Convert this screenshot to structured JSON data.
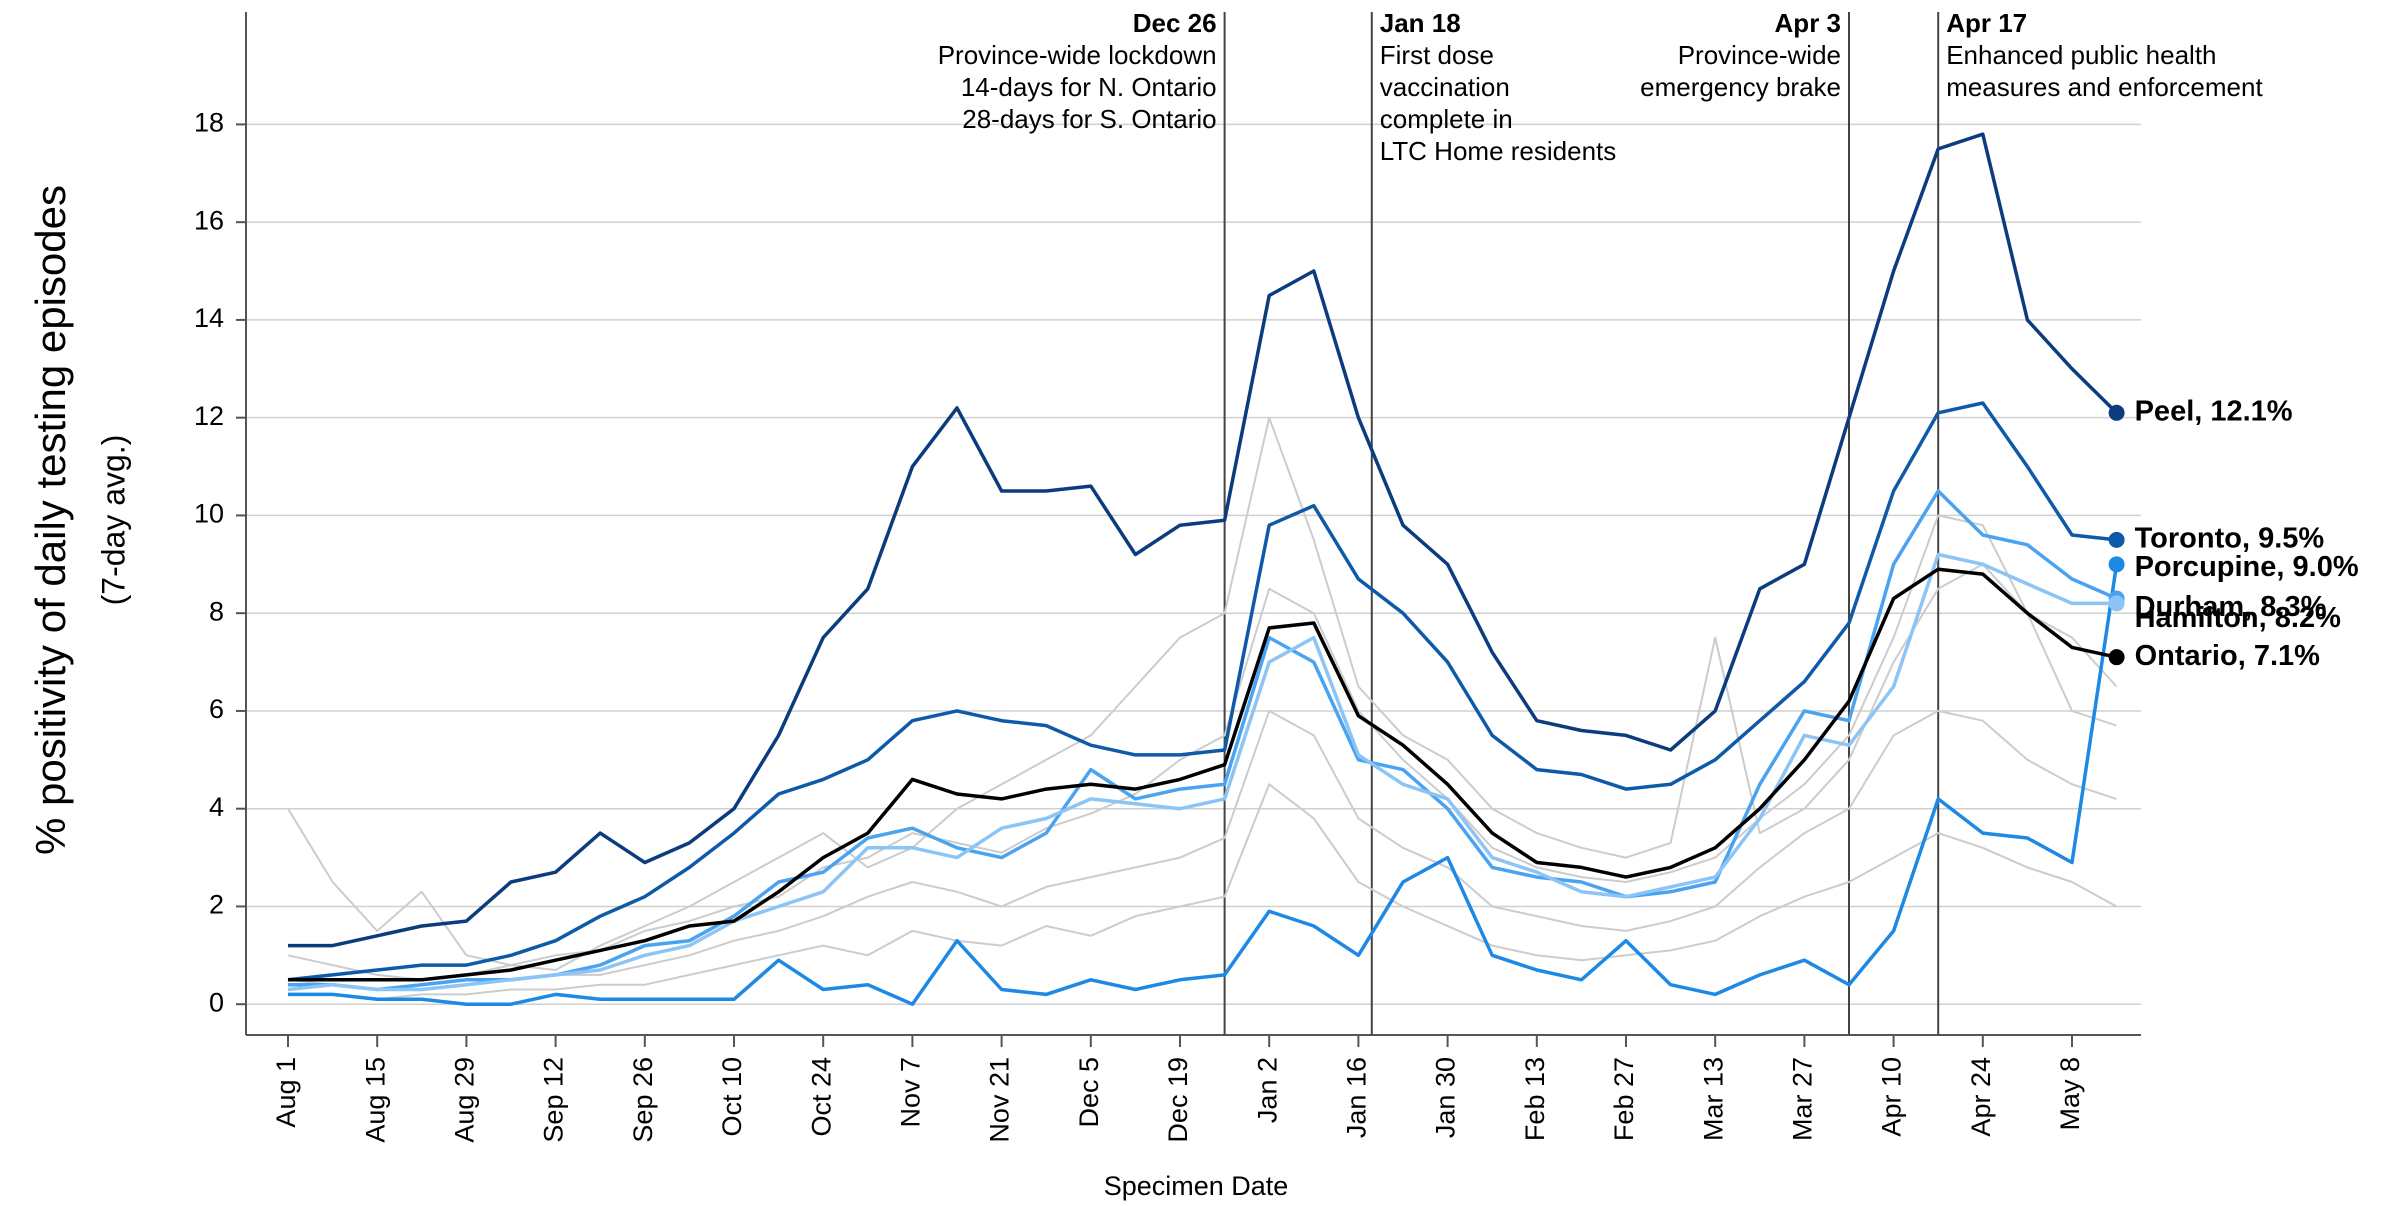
{
  "chart_data": {
    "type": "line",
    "y_label": "% positivity of daily testing episodes",
    "y_sublabel": "(7-day avg.)",
    "x_label": "Specimen Date",
    "categories": [
      "Aug 1",
      null,
      "Aug 15",
      null,
      "Aug 29",
      null,
      "Sep 12",
      null,
      "Sep 26",
      null,
      "Oct 10",
      null,
      "Oct 24",
      null,
      "Nov 7",
      null,
      "Nov 21",
      null,
      "Dec 5",
      null,
      "Dec 19",
      null,
      "Jan 2",
      null,
      "Jan 16",
      null,
      "Jan 30",
      null,
      "Feb 13",
      null,
      "Feb 27",
      null,
      "Mar 13",
      null,
      "Mar 27",
      null,
      "Apr 10",
      null,
      "Apr 24",
      null,
      "May 8",
      null
    ],
    "ylim": [
      -0.63,
      20.3
    ],
    "yticks": [
      0,
      2,
      4,
      6,
      8,
      10,
      12,
      14,
      16,
      18
    ],
    "grid": true,
    "annotations": [
      {
        "date": "Dec 26",
        "lines": [
          "Province-wide lockdown",
          "14-days for N. Ontario",
          "28-days for S. Ontario"
        ]
      },
      {
        "date": "Jan 18",
        "lines": [
          "First dose",
          "vaccination",
          "complete in",
          "LTC Home residents"
        ]
      },
      {
        "date": "Apr 3",
        "lines": [
          "Province-wide",
          "emergency brake"
        ]
      },
      {
        "date": "Apr 17",
        "lines": [
          "Enhanced public health",
          "measures and enforcement"
        ]
      }
    ],
    "background_series": [
      {
        "color": "#cccccc",
        "values": [
          4.0,
          2.5,
          1.5,
          2.3,
          1.0,
          0.8,
          0.7,
          1.2,
          1.6,
          2.0,
          2.5,
          3.0,
          3.5,
          2.8,
          3.2,
          4.0,
          4.5,
          5.0,
          5.5,
          6.5,
          7.5,
          8.0,
          12.0,
          9.5,
          6.5,
          5.5,
          5.0,
          4.0,
          3.5,
          3.2,
          3.0,
          3.3,
          7.5,
          3.5,
          4.0,
          5.0,
          7.0,
          8.5,
          9.0,
          8.0,
          7.5,
          6.5
        ]
      },
      {
        "color": "#cccccc",
        "values": [
          0.5,
          0.4,
          0.3,
          0.3,
          0.4,
          0.5,
          0.6,
          0.6,
          0.8,
          1.0,
          1.3,
          1.5,
          1.8,
          2.2,
          2.5,
          2.3,
          2.0,
          2.4,
          2.6,
          2.8,
          3.0,
          3.4,
          6.0,
          5.5,
          3.8,
          3.2,
          2.8,
          2.0,
          1.8,
          1.6,
          1.5,
          1.7,
          2.0,
          2.8,
          3.5,
          4.0,
          5.5,
          6.0,
          5.8,
          5.0,
          4.5,
          4.2
        ]
      },
      {
        "color": "#cccccc",
        "values": [
          0.2,
          0.2,
          0.1,
          0.2,
          0.2,
          0.3,
          0.3,
          0.4,
          0.4,
          0.6,
          0.8,
          1.0,
          1.2,
          1.0,
          1.5,
          1.3,
          1.2,
          1.6,
          1.4,
          1.8,
          2.0,
          2.2,
          4.5,
          3.8,
          2.5,
          2.0,
          1.6,
          1.2,
          1.0,
          0.9,
          1.0,
          1.1,
          1.3,
          1.8,
          2.2,
          2.5,
          3.0,
          3.5,
          3.2,
          2.8,
          2.5,
          2.0
        ]
      },
      {
        "color": "#cccccc",
        "values": [
          1.0,
          0.8,
          0.6,
          0.5,
          0.6,
          0.8,
          1.0,
          1.1,
          1.5,
          1.7,
          2.0,
          2.2,
          2.8,
          3.0,
          3.5,
          3.3,
          3.1,
          3.6,
          3.9,
          4.3,
          5.0,
          5.5,
          8.5,
          8.0,
          6.0,
          5.0,
          4.2,
          3.2,
          2.8,
          2.6,
          2.5,
          2.7,
          3.0,
          3.8,
          4.5,
          5.5,
          7.5,
          10.0,
          9.8,
          8.0,
          6.0,
          5.7
        ]
      }
    ],
    "series": [
      {
        "name": "Peel, 12.1%",
        "color": "#0b3c7d",
        "values": [
          1.2,
          1.2,
          1.4,
          1.6,
          1.7,
          2.5,
          2.7,
          3.5,
          2.9,
          3.3,
          4.0,
          5.5,
          7.5,
          8.5,
          11.0,
          12.2,
          10.5,
          10.5,
          10.6,
          9.2,
          9.8,
          9.9,
          14.5,
          15.0,
          12.0,
          9.8,
          9.0,
          7.2,
          5.8,
          5.6,
          5.5,
          5.2,
          6.0,
          8.5,
          9.0,
          12.0,
          15.0,
          17.5,
          17.8,
          14.0,
          13.0,
          12.1
        ]
      },
      {
        "name": "Toronto, 9.5%",
        "color": "#0f5aa8",
        "values": [
          0.5,
          0.6,
          0.7,
          0.8,
          0.8,
          1.0,
          1.3,
          1.8,
          2.2,
          2.8,
          3.5,
          4.3,
          4.6,
          5.0,
          5.8,
          6.0,
          5.8,
          5.7,
          5.3,
          5.1,
          5.1,
          5.2,
          9.8,
          10.2,
          8.7,
          8.0,
          7.0,
          5.5,
          4.8,
          4.7,
          4.4,
          4.5,
          5.0,
          5.8,
          6.6,
          7.8,
          10.5,
          12.1,
          12.3,
          11.0,
          9.6,
          9.5
        ]
      },
      {
        "name": "Porcupine, 9.0%",
        "color": "#1e88e5",
        "values": [
          0.2,
          0.2,
          0.1,
          0.1,
          0.0,
          0.0,
          0.2,
          0.1,
          0.1,
          0.1,
          0.1,
          0.9,
          0.3,
          0.4,
          0.0,
          1.3,
          0.3,
          0.2,
          0.5,
          0.3,
          0.5,
          0.6,
          1.9,
          1.6,
          1.0,
          2.5,
          3.0,
          1.0,
          0.7,
          0.5,
          1.3,
          0.4,
          0.2,
          0.6,
          0.9,
          0.4,
          1.5,
          4.2,
          3.5,
          3.4,
          2.9,
          9.0
        ]
      },
      {
        "name": "Durham, 8.3%",
        "color": "#4aa3f0",
        "values": [
          0.4,
          0.4,
          0.3,
          0.4,
          0.5,
          0.5,
          0.6,
          0.8,
          1.2,
          1.3,
          1.8,
          2.5,
          2.7,
          3.4,
          3.6,
          3.2,
          3.0,
          3.5,
          4.8,
          4.2,
          4.4,
          4.5,
          7.5,
          7.0,
          5.0,
          4.8,
          4.0,
          2.8,
          2.6,
          2.5,
          2.2,
          2.3,
          2.5,
          4.5,
          6.0,
          5.8,
          9.0,
          10.5,
          9.6,
          9.4,
          8.7,
          8.3
        ]
      },
      {
        "name": "Hamilton, 8.2%",
        "color": "#8cc4f5",
        "values": [
          0.3,
          0.4,
          0.3,
          0.3,
          0.4,
          0.5,
          0.6,
          0.7,
          1.0,
          1.2,
          1.7,
          2.0,
          2.3,
          3.2,
          3.2,
          3.0,
          3.6,
          3.8,
          4.2,
          4.1,
          4.0,
          4.2,
          7.0,
          7.5,
          5.1,
          4.5,
          4.2,
          3.0,
          2.7,
          2.3,
          2.2,
          2.4,
          2.6,
          3.8,
          5.5,
          5.3,
          6.5,
          9.2,
          9.0,
          8.6,
          8.2,
          8.2
        ]
      },
      {
        "name": "Ontario, 7.1%",
        "color": "#000000",
        "values": [
          0.5,
          0.5,
          0.5,
          0.5,
          0.6,
          0.7,
          0.9,
          1.1,
          1.3,
          1.6,
          1.7,
          2.3,
          3.0,
          3.5,
          4.6,
          4.3,
          4.2,
          4.4,
          4.5,
          4.4,
          4.6,
          4.9,
          7.7,
          7.8,
          5.9,
          5.3,
          4.5,
          3.5,
          2.9,
          2.8,
          2.6,
          2.8,
          3.2,
          4.0,
          5.0,
          6.2,
          8.3,
          8.9,
          8.8,
          8.0,
          7.3,
          7.1
        ]
      }
    ]
  }
}
